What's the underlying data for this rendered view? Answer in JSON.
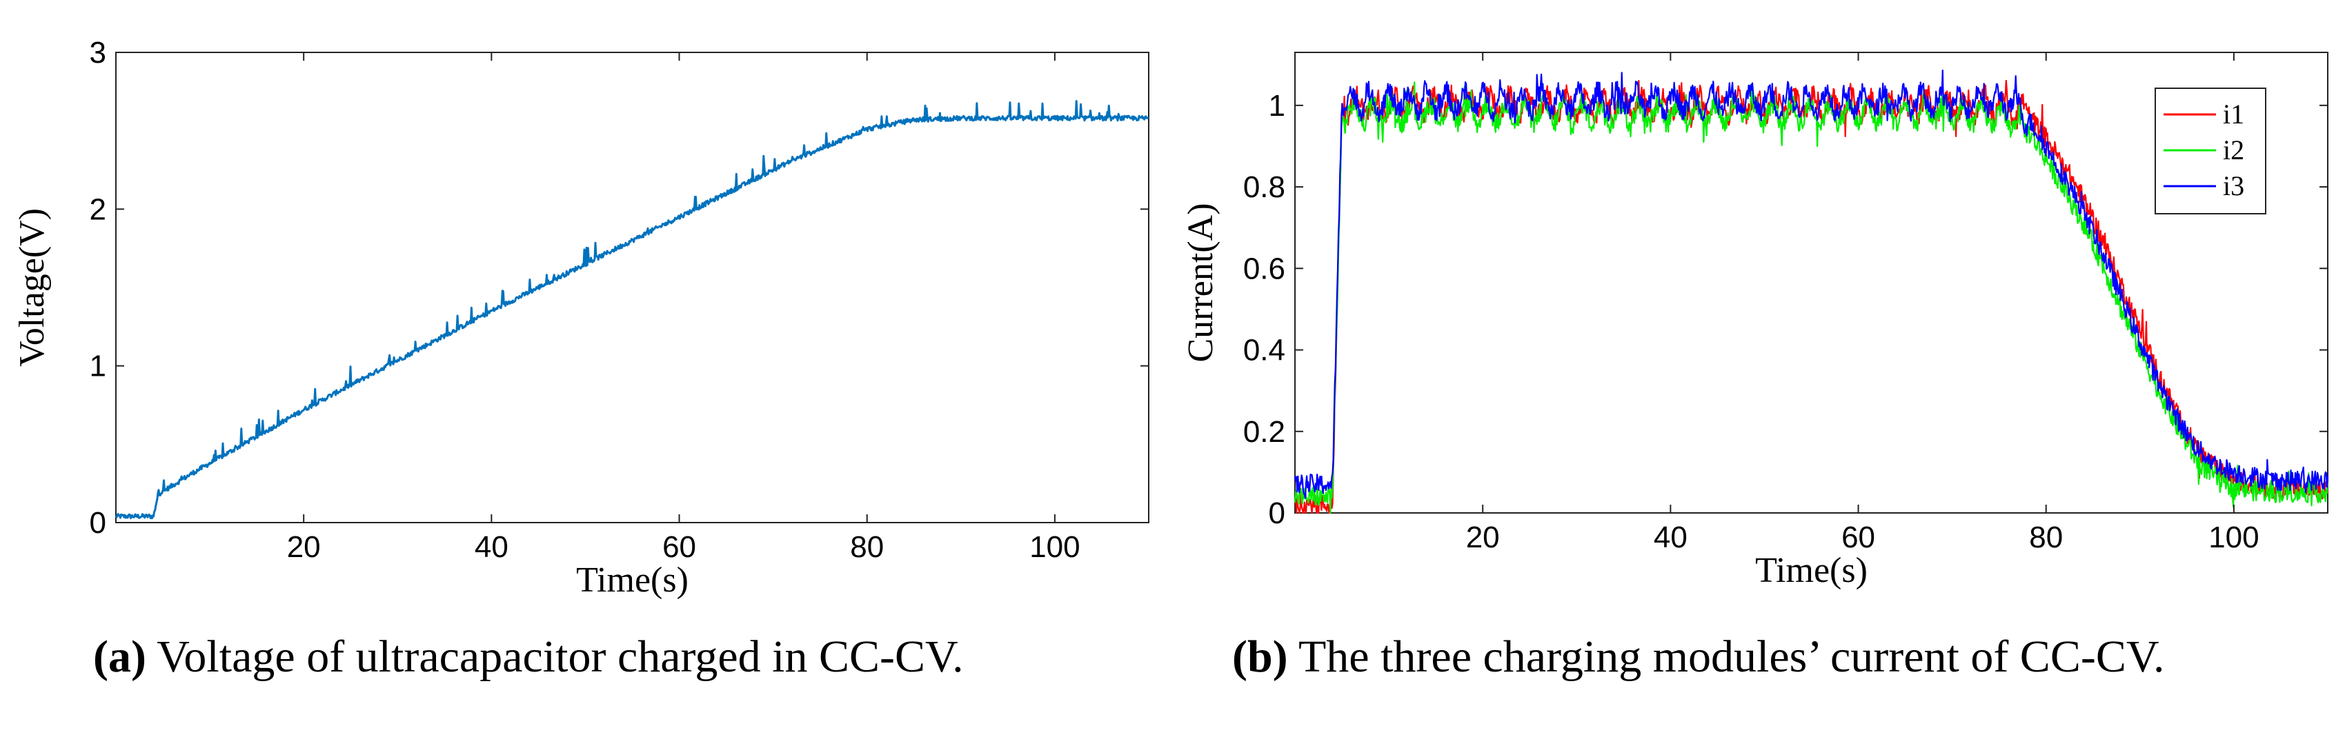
{
  "chart_data": [
    {
      "type": "line",
      "xlabel": "Time(s)",
      "ylabel": "Voltage(V)",
      "xlim": [
        0,
        110
      ],
      "ylim": [
        0,
        3
      ],
      "xticks": [
        20,
        40,
        60,
        80,
        100
      ],
      "yticks": [
        0,
        1,
        2,
        3
      ],
      "grid": false,
      "series": [
        {
          "name": "Voltage",
          "color": "#0072bd",
          "x": [
            0,
            4,
            4.5,
            8,
            20,
            40,
            60,
            72,
            80,
            85,
            90,
            100,
            110
          ],
          "y": [
            0.04,
            0.04,
            0.18,
            0.31,
            0.72,
            1.35,
            1.95,
            2.31,
            2.51,
            2.57,
            2.58,
            2.58,
            2.58
          ]
        }
      ],
      "caption_tag": "(a)",
      "caption": "Voltage of ultracapacitor charged in CC-CV."
    },
    {
      "type": "line",
      "xlabel": "Time(s)",
      "ylabel": "Current(A)",
      "xlim": [
        0,
        110
      ],
      "ylim": [
        0,
        1.13
      ],
      "xticks": [
        20,
        40,
        60,
        80,
        100
      ],
      "yticks": [
        0.2,
        0.4,
        0.6,
        0.8,
        1
      ],
      "ytick_labels": [
        "0.2",
        "0.4",
        "0.6",
        "0.8",
        "1"
      ],
      "origin_label": "0",
      "grid": false,
      "legend": "top-right",
      "series": [
        {
          "name": "i1",
          "color": "#ff0000",
          "x": [
            0,
            4,
            5,
            10,
            30,
            50,
            70,
            76,
            78,
            80,
            82,
            84,
            86,
            88,
            90,
            92,
            94,
            96,
            98,
            100,
            104,
            110
          ],
          "y": [
            0.02,
            0.02,
            1.0,
            1.0,
            1.0,
            1.0,
            1.0,
            1.0,
            0.98,
            0.92,
            0.85,
            0.77,
            0.67,
            0.56,
            0.45,
            0.34,
            0.24,
            0.16,
            0.11,
            0.08,
            0.06,
            0.06
          ]
        },
        {
          "name": "i2",
          "color": "#00ee00",
          "x": [
            0,
            4,
            5,
            10,
            30,
            50,
            70,
            76,
            78,
            80,
            82,
            84,
            86,
            88,
            90,
            92,
            94,
            96,
            98,
            100,
            104,
            110
          ],
          "y": [
            0.04,
            0.04,
            0.98,
            0.98,
            0.98,
            0.98,
            0.98,
            0.97,
            0.94,
            0.87,
            0.79,
            0.71,
            0.61,
            0.5,
            0.4,
            0.3,
            0.21,
            0.13,
            0.09,
            0.06,
            0.05,
            0.05
          ]
        },
        {
          "name": "i3",
          "color": "#0000ff",
          "x": [
            0,
            4,
            5,
            10,
            30,
            50,
            70,
            76,
            78,
            80,
            82,
            84,
            86,
            88,
            90,
            92,
            94,
            96,
            98,
            100,
            104,
            110
          ],
          "y": [
            0.07,
            0.07,
            1.01,
            1.01,
            1.01,
            1.01,
            1.01,
            1.01,
            0.97,
            0.9,
            0.82,
            0.74,
            0.64,
            0.53,
            0.42,
            0.32,
            0.23,
            0.16,
            0.12,
            0.1,
            0.08,
            0.08
          ]
        }
      ],
      "caption_tag": "(b)",
      "caption": "The three charging modules’ current of CC-CV."
    }
  ]
}
